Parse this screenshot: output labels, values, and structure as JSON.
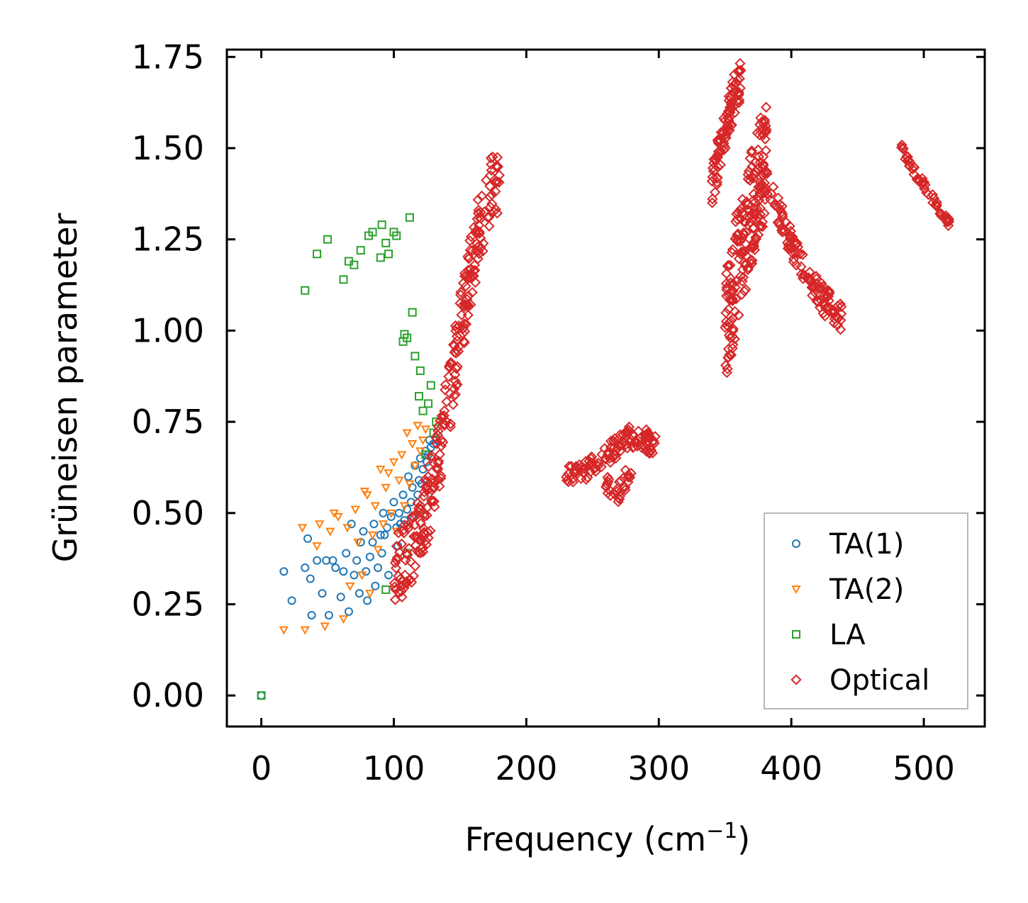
{
  "chart_data": {
    "type": "scatter",
    "xlabel": "Frequency (cm",
    "xlabel_sup": "−1",
    "xlabel_close": ")",
    "ylabel": "Grüneisen parameter",
    "xlim": [
      -26,
      546
    ],
    "ylim": [
      -0.085,
      1.77
    ],
    "xticks": [
      0,
      100,
      200,
      300,
      400,
      500
    ],
    "xtick_labels": [
      "0",
      "100",
      "200",
      "300",
      "400",
      "500"
    ],
    "yticks": [
      0.0,
      0.25,
      0.5,
      0.75,
      1.0,
      1.25,
      1.5,
      1.75
    ],
    "ytick_labels": [
      "0.00",
      "0.25",
      "0.50",
      "0.75",
      "1.00",
      "1.25",
      "1.50",
      "1.75"
    ],
    "legend_position": "bottom-right",
    "series": [
      {
        "name": "TA(1)",
        "marker": "circle",
        "color": "#1f77b4",
        "x": [
          0,
          17,
          23,
          33,
          35,
          37,
          38,
          42,
          46,
          49,
          51,
          54,
          56,
          60,
          62,
          64,
          66,
          68,
          70,
          72,
          74,
          75,
          77,
          79,
          80,
          82,
          84,
          85,
          86,
          88,
          90,
          91,
          92,
          93,
          95,
          96,
          98,
          100,
          102,
          103,
          104,
          105,
          107,
          108,
          110,
          111,
          113,
          114,
          115,
          116,
          118,
          119,
          120,
          121,
          122,
          124,
          125,
          126,
          127,
          128,
          130,
          132
        ],
        "y": [
          0.0,
          0.34,
          0.26,
          0.35,
          0.43,
          0.32,
          0.22,
          0.37,
          0.28,
          0.37,
          0.22,
          0.37,
          0.35,
          0.27,
          0.34,
          0.39,
          0.23,
          0.47,
          0.33,
          0.37,
          0.28,
          0.42,
          0.45,
          0.34,
          0.26,
          0.38,
          0.42,
          0.47,
          0.3,
          0.35,
          0.44,
          0.39,
          0.5,
          0.44,
          0.46,
          0.33,
          0.49,
          0.53,
          0.46,
          0.41,
          0.5,
          0.47,
          0.55,
          0.48,
          0.51,
          0.6,
          0.53,
          0.57,
          0.49,
          0.63,
          0.55,
          0.59,
          0.65,
          0.58,
          0.62,
          0.67,
          0.64,
          0.66,
          0.7,
          0.68,
          0.69,
          0.7
        ]
      },
      {
        "name": "TA(2)",
        "marker": "triangle-down",
        "color": "#ff7f0e",
        "x": [
          17,
          31,
          33,
          42,
          44,
          48,
          52,
          55,
          58,
          62,
          65,
          67,
          71,
          73,
          76,
          78,
          80,
          82,
          84,
          86,
          88,
          90,
          92,
          94,
          96,
          98,
          100,
          102,
          104,
          106,
          108,
          110,
          112,
          114,
          116,
          118,
          120,
          122,
          124
        ],
        "y": [
          0.18,
          0.46,
          0.18,
          0.41,
          0.47,
          0.19,
          0.45,
          0.5,
          0.49,
          0.21,
          0.46,
          0.3,
          0.51,
          0.42,
          0.33,
          0.56,
          0.55,
          0.28,
          0.44,
          0.52,
          0.4,
          0.62,
          0.47,
          0.57,
          0.61,
          0.5,
          0.64,
          0.45,
          0.59,
          0.66,
          0.52,
          0.72,
          0.58,
          0.69,
          0.63,
          0.74,
          0.67,
          0.7,
          0.73
        ]
      },
      {
        "name": "LA",
        "marker": "square",
        "color": "#2ca02c",
        "x": [
          0,
          33,
          42,
          50,
          62,
          66,
          70,
          75,
          81,
          84,
          90,
          91,
          94,
          96,
          100,
          102,
          107,
          108,
          110,
          112,
          114,
          116,
          119,
          120,
          122,
          126,
          128,
          132,
          94,
          110,
          120,
          124,
          130
        ],
        "y": [
          0.0,
          1.11,
          1.21,
          1.25,
          1.14,
          1.19,
          1.18,
          1.22,
          1.26,
          1.27,
          1.2,
          1.29,
          1.24,
          1.21,
          1.27,
          1.26,
          0.97,
          0.99,
          0.98,
          1.31,
          1.05,
          0.93,
          0.82,
          0.89,
          0.78,
          0.8,
          0.85,
          0.75,
          0.29,
          0.39,
          0.51,
          0.66,
          0.72
        ]
      },
      {
        "name": "Optical",
        "marker": "diamond",
        "color": "#d62728",
        "labels_in_series": true,
        "bands": [
          {
            "points": [
              [
                100,
                0.33
              ],
              [
                108,
                0.37
              ],
              [
                115,
                0.42
              ],
              [
                122,
                0.48
              ],
              [
                130,
                0.58
              ],
              [
                136,
                0.7
              ],
              [
                142,
                0.82
              ],
              [
                148,
                0.95
              ],
              [
                154,
                1.08
              ],
              [
                160,
                1.2
              ],
              [
                166,
                1.3
              ],
              [
                172,
                1.37
              ],
              [
                180,
                1.43
              ]
            ],
            "spread": 0.1,
            "n": 260
          },
          {
            "points": [
              [
                230,
                0.6
              ],
              [
                245,
                0.62
              ],
              [
                258,
                0.65
              ],
              [
                268,
                0.68
              ],
              [
                278,
                0.71
              ],
              [
                290,
                0.7
              ],
              [
                298,
                0.68
              ]
            ],
            "spread": 0.03,
            "n": 120
          },
          {
            "points": [
              [
                260,
                0.6
              ],
              [
                266,
                0.53
              ],
              [
                272,
                0.58
              ],
              [
                280,
                0.62
              ]
            ],
            "spread": 0.03,
            "n": 30
          },
          {
            "points": [
              [
                340,
                1.4
              ],
              [
                347,
                1.5
              ],
              [
                352,
                1.58
              ],
              [
                358,
                1.66
              ],
              [
                362,
                1.68
              ]
            ],
            "spread": 0.06,
            "n": 90
          },
          {
            "points": [
              [
                350,
                1.0
              ],
              [
                358,
                1.15
              ],
              [
                366,
                1.28
              ],
              [
                374,
                1.4
              ],
              [
                382,
                1.48
              ]
            ],
            "spread": 0.16,
            "n": 200
          },
          {
            "points": [
              [
                384,
                1.4
              ],
              [
                395,
                1.28
              ],
              [
                405,
                1.2
              ],
              [
                415,
                1.14
              ],
              [
                425,
                1.08
              ],
              [
                438,
                1.04
              ]
            ],
            "spread": 0.04,
            "n": 110
          },
          {
            "points": [
              [
                482,
                1.51
              ],
              [
                492,
                1.44
              ],
              [
                502,
                1.39
              ],
              [
                512,
                1.33
              ],
              [
                520,
                1.29
              ]
            ],
            "spread": 0.012,
            "n": 50
          }
        ]
      }
    ]
  }
}
